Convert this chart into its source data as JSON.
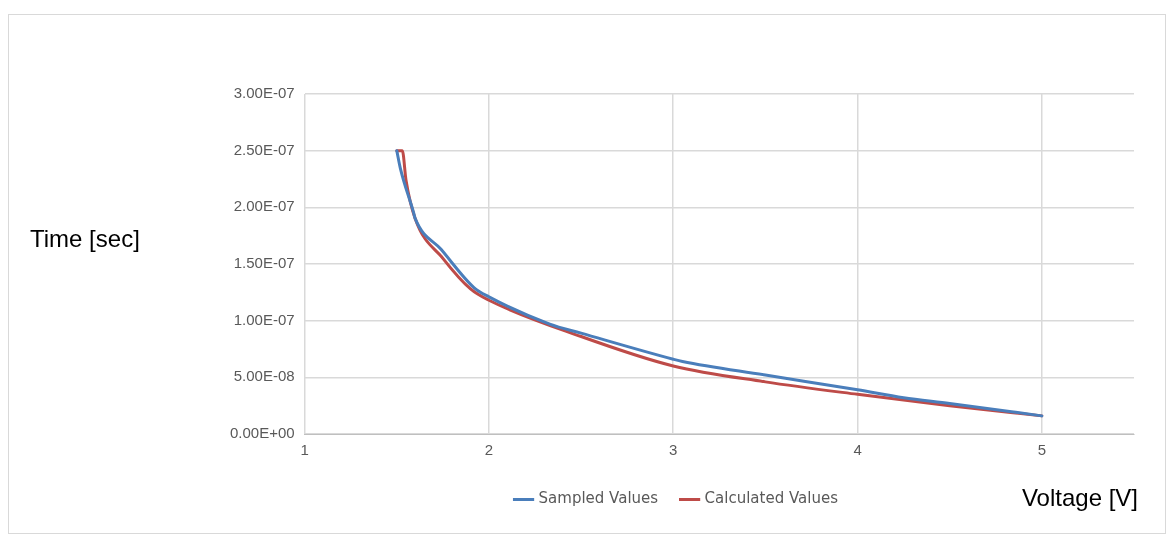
{
  "chart_data": {
    "type": "line",
    "xlabel": "Voltage [V]",
    "ylabel": "Time [sec]",
    "xlim": [
      1,
      5.5
    ],
    "xticks": [
      1,
      2,
      3,
      4,
      5
    ],
    "ylim": [
      0,
      3e-07
    ],
    "yticks": [
      {
        "value": 0,
        "label": "0.00E+00"
      },
      {
        "value": 5e-08,
        "label": "5.00E-08"
      },
      {
        "value": 1e-07,
        "label": "1.00E-07"
      },
      {
        "value": 1.5e-07,
        "label": "1.50E-07"
      },
      {
        "value": 2e-07,
        "label": "2.00E-07"
      },
      {
        "value": 2.5e-07,
        "label": "2.50E-07"
      },
      {
        "value": 3e-07,
        "label": "3.00E-07"
      }
    ],
    "grid": true,
    "legend": "bottom",
    "marker": "none",
    "line_style": "solid",
    "series": [
      {
        "name": "Sampled Values",
        "color": "#4a7ebb",
        "x": [
          1.5,
          1.52,
          1.59,
          1.6,
          1.74,
          1.92,
          2,
          2.33,
          2.5,
          3,
          3.05,
          3.5,
          4,
          4.25,
          4.5,
          5
        ],
        "values": [
          2.5e-07,
          2.34e-07,
          1.96e-07,
          1.9e-07,
          1.63e-07,
          1.29e-07,
          1.21e-07,
          9.7e-08,
          8.9e-08,
          6.6e-08,
          6.4e-08,
          5.2e-08,
          3.9e-08,
          3.2e-08,
          2.7e-08,
          1.6e-08
        ]
      },
      {
        "name": "Calculated Values",
        "color": "#be4b48",
        "x": [
          1.5,
          1.53,
          1.55,
          1.6,
          1.75,
          1.9,
          2,
          2.5,
          3,
          3.5,
          4,
          4.5,
          5
        ],
        "values": [
          2.5e-07,
          2.5e-07,
          2.24e-07,
          1.9e-07,
          1.55e-07,
          1.28e-07,
          1.18e-07,
          8.6e-08,
          6e-08,
          4.6e-08,
          3.5e-08,
          2.5e-08,
          1.6e-08
        ]
      }
    ]
  }
}
